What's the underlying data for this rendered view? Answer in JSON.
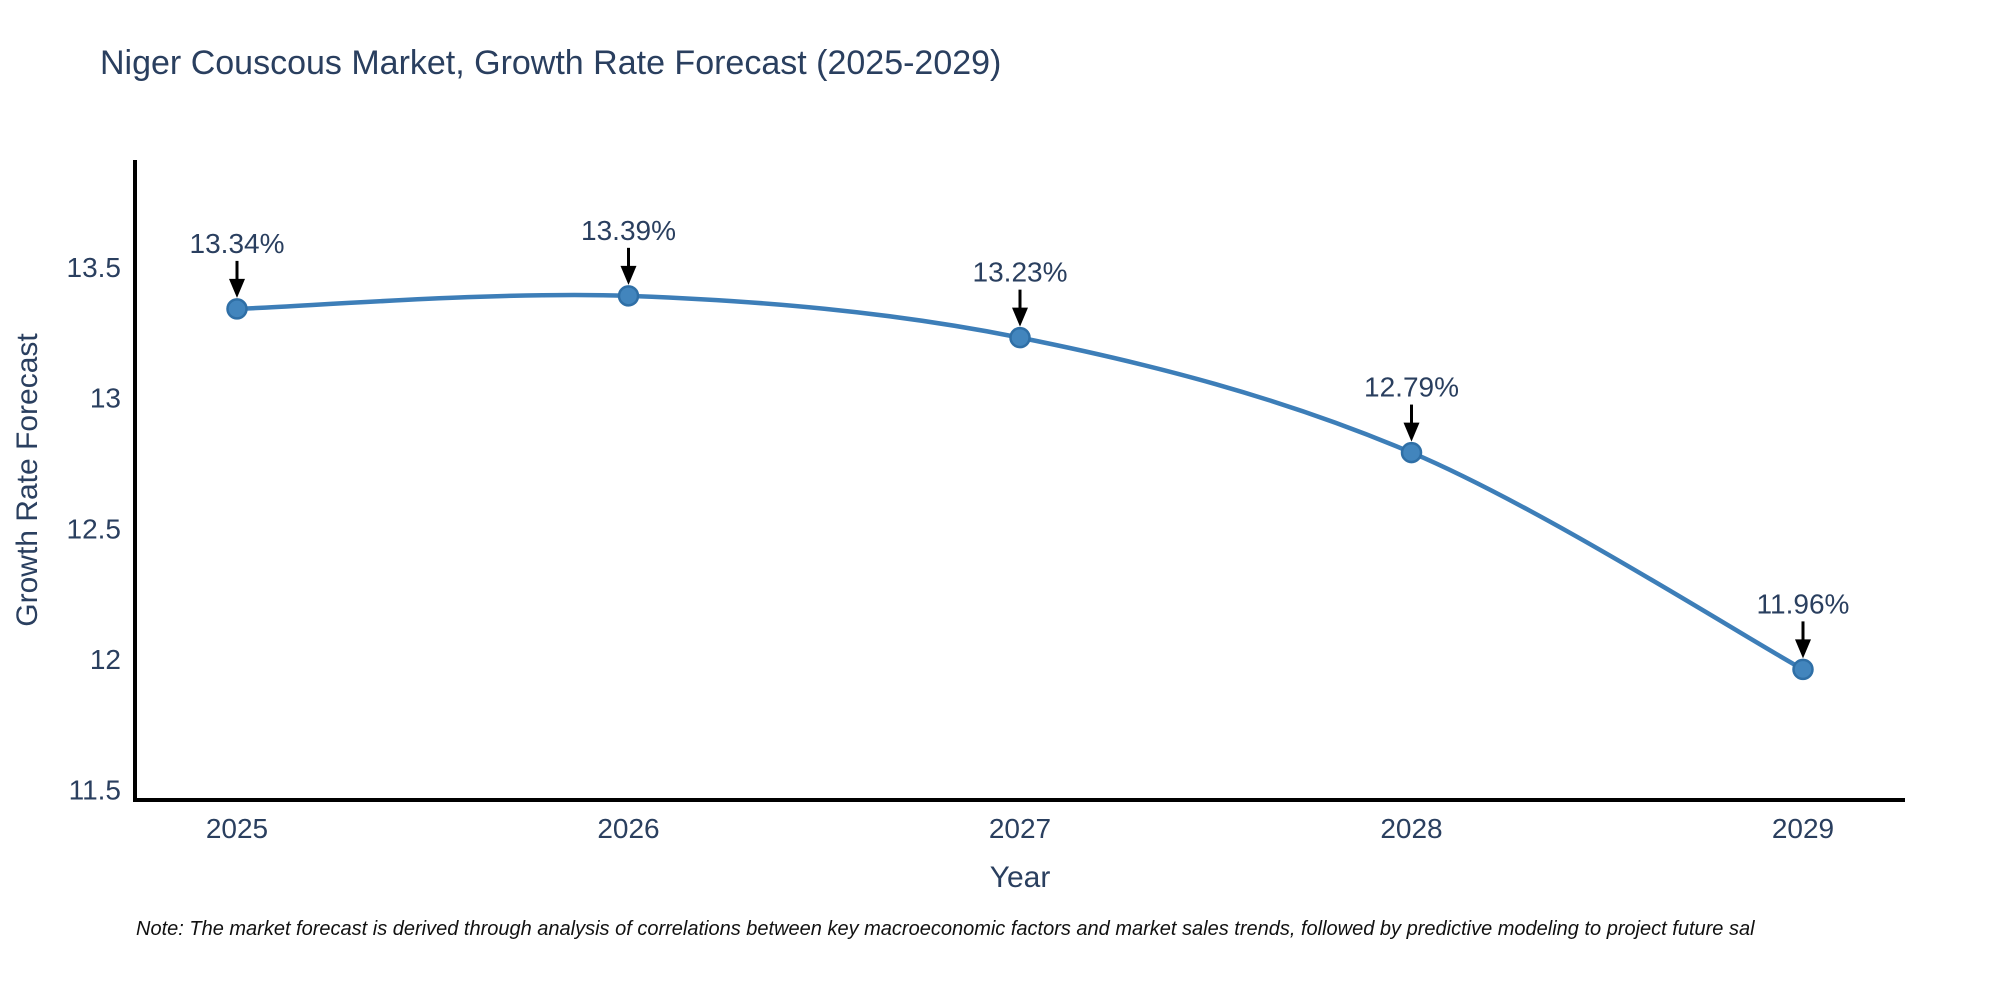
{
  "page": {
    "background": "#ffffff"
  },
  "footnote": "Note: The market forecast is derived through analysis of correlations between key macroeconomic factors and market sales trends, followed by predictive modeling to project future sal",
  "chart_data": {
    "type": "line",
    "title": "Niger Couscous Market, Growth Rate Forecast (2025-2029)",
    "xlabel": "Year",
    "ylabel": "Growth Rate Forecast",
    "categories": [
      "2025",
      "2026",
      "2027",
      "2028",
      "2029"
    ],
    "values": [
      13.34,
      13.39,
      13.23,
      12.79,
      11.96
    ],
    "point_labels": [
      "13.34%",
      "13.39%",
      "13.23%",
      "12.79%",
      "11.96%"
    ],
    "yticks": [
      11.5,
      12,
      12.5,
      13,
      13.5
    ],
    "ytick_labels": [
      "11.5",
      "12",
      "12.5",
      "13",
      "13.5"
    ],
    "ylim": [
      11.46,
      13.91
    ],
    "grid": false,
    "legend": "none",
    "line_shape": "spline",
    "colors": {
      "line": "#3d7eb8",
      "marker": "#4285bd",
      "marker_edge": "#2f6fa6",
      "axis": "#000000",
      "tick_text": "#2a3f5f",
      "annotation_text": "#2a3f5f",
      "arrow": "#000000",
      "title_text": "#2a3f5f",
      "note_text": "#111111"
    }
  }
}
